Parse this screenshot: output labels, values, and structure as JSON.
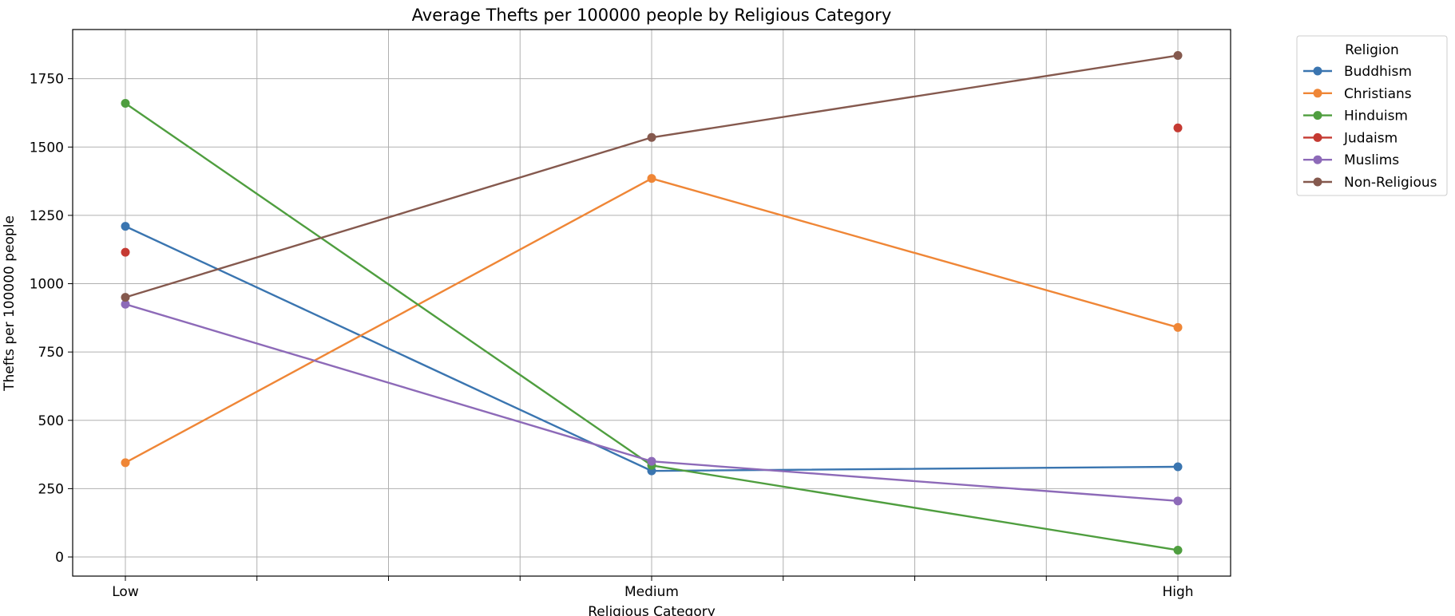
{
  "chart_data": {
    "type": "line",
    "title": "Average Thefts per 100000 people by Religious Category",
    "xlabel": "Religious Category",
    "ylabel": "Thefts per 100000 people",
    "categories": [
      "Low",
      "Medium",
      "High"
    ],
    "ylim": [
      -70,
      1930
    ],
    "yticks": [
      0,
      250,
      500,
      750,
      1000,
      1250,
      1500,
      1750
    ],
    "grid": true,
    "legend": {
      "title": "Religion",
      "placement": "outside top-right"
    },
    "series": [
      {
        "name": "Buddhism",
        "color": "#3a75b0",
        "values": [
          1210,
          315,
          330
        ]
      },
      {
        "name": "Christians",
        "color": "#ef8636",
        "values": [
          345,
          1385,
          840
        ]
      },
      {
        "name": "Hinduism",
        "color": "#4f9e3f",
        "values": [
          1660,
          335,
          25
        ]
      },
      {
        "name": "Judaism",
        "color": "#c53a32",
        "values": [
          1115,
          null,
          1570
        ]
      },
      {
        "name": "Muslims",
        "color": "#8d6ab8",
        "values": [
          925,
          350,
          205
        ]
      },
      {
        "name": "Non-Religious",
        "color": "#85594e",
        "values": [
          950,
          1535,
          1835
        ]
      }
    ]
  }
}
